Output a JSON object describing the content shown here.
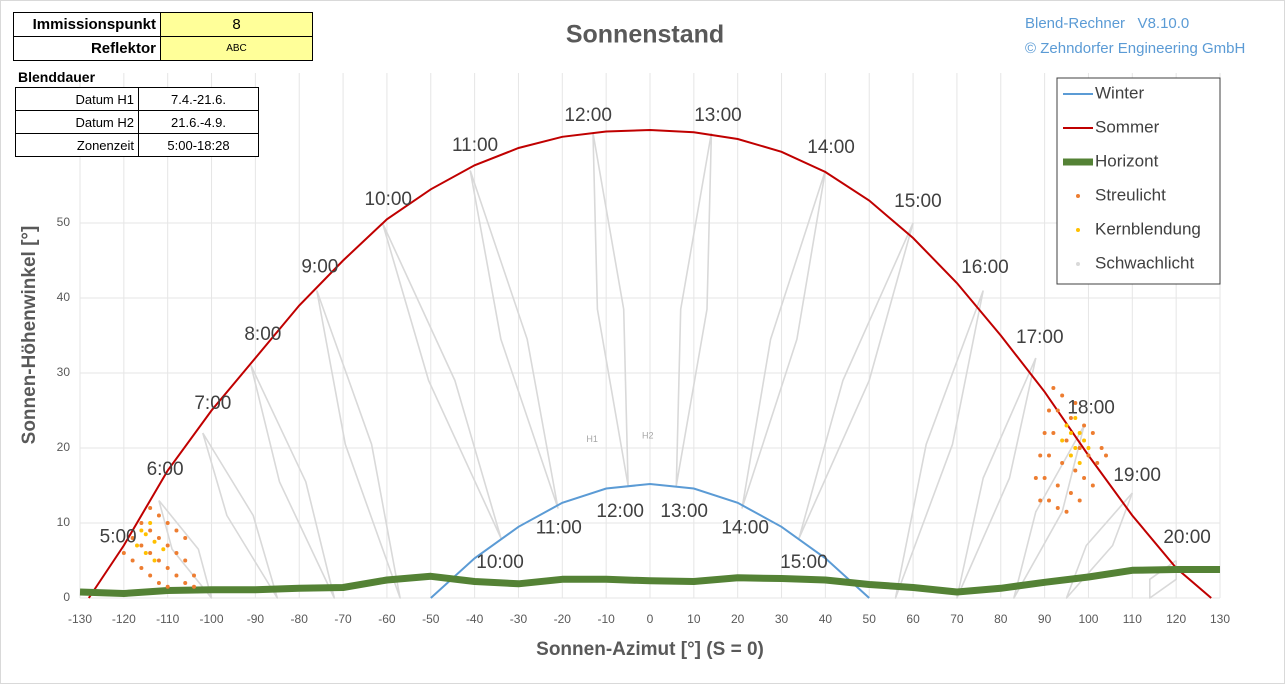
{
  "header": {
    "rows": [
      [
        "Immissionspunkt",
        "8"
      ],
      [
        "Reflektor",
        "ABC"
      ]
    ]
  },
  "blenddauer": {
    "title": "Blenddauer",
    "rows": [
      [
        "Datum H1",
        "7.4.-21.6."
      ],
      [
        "Datum H2",
        "21.6.-4.9."
      ],
      [
        "Zonenzeit",
        "5:00-18:28"
      ]
    ]
  },
  "brand": [
    "Blend-Rechner   V8.10.0",
    "© Zehndorfer Engineering GmbH"
  ],
  "chart_data": {
    "type": "line",
    "title": "Sonnenstand",
    "xlabel": "Sonnen-Azimut [°] (S = 0)",
    "ylabel": "Sonnen-Höhenwinkel [°]",
    "xlim": [
      -130,
      130
    ],
    "ylim": [
      0,
      70
    ],
    "xticks": [
      -130,
      -120,
      -110,
      -100,
      -90,
      -80,
      -70,
      -60,
      -50,
      -40,
      -30,
      -20,
      -10,
      0,
      10,
      20,
      30,
      40,
      50,
      60,
      70,
      80,
      90,
      100,
      110,
      120,
      130
    ],
    "yticks": [
      0,
      10,
      20,
      30,
      40,
      50
    ],
    "grid": true,
    "legend": "upper right",
    "series": [
      {
        "name": "Winter",
        "color": "#5b9bd5",
        "style": "line",
        "x": [
          -50,
          -40,
          -30,
          -20,
          -10,
          0,
          10,
          20,
          30,
          40,
          50
        ],
        "y": [
          0,
          5.3,
          9.5,
          12.7,
          14.6,
          15.2,
          14.6,
          12.7,
          9.5,
          5.3,
          0
        ]
      },
      {
        "name": "Sommer",
        "color": "#c00000",
        "style": "line",
        "x": [
          -128,
          -120,
          -110,
          -100,
          -90,
          -80,
          -70,
          -60,
          -50,
          -40,
          -30,
          -20,
          -10,
          0,
          10,
          20,
          30,
          40,
          50,
          60,
          70,
          80,
          90,
          100,
          110,
          120,
          128
        ],
        "y": [
          0,
          7,
          17,
          25,
          32,
          39,
          45,
          50.5,
          54.5,
          57.7,
          60,
          61.5,
          62.2,
          62.4,
          62.1,
          61.2,
          59.5,
          56.8,
          53,
          48,
          42,
          35,
          27.5,
          19,
          11,
          4,
          0
        ]
      },
      {
        "name": "Horizont",
        "color": "#548235",
        "style": "thick",
        "x": [
          -130,
          -120,
          -110,
          -100,
          -90,
          -80,
          -70,
          -60,
          -50,
          -40,
          -30,
          -20,
          -10,
          0,
          10,
          20,
          30,
          40,
          50,
          60,
          70,
          80,
          90,
          100,
          110,
          120,
          130
        ],
        "y": [
          0.8,
          0.6,
          1,
          1.1,
          1.1,
          1.3,
          1.4,
          2.4,
          2.9,
          2.2,
          1.9,
          2.5,
          2.5,
          2.3,
          2.2,
          2.7,
          2.6,
          2.4,
          1.8,
          1.4,
          0.8,
          1.3,
          2.1,
          2.8,
          3.7,
          3.8,
          3.8
        ]
      },
      {
        "name": "Streulicht",
        "color": "#ed7d31",
        "style": "dots",
        "x": [
          -120,
          -118,
          -116,
          -114,
          -118,
          -116,
          -114,
          -112,
          -116,
          -114,
          -112,
          -110,
          -114,
          -112,
          -110,
          -108,
          -112,
          -110,
          -108,
          -106,
          -110,
          -108,
          -106,
          -104,
          -106,
          -104,
          89,
          88,
          89,
          90,
          91,
          92,
          91,
          90,
          91,
          92,
          93,
          94,
          93,
          93,
          94,
          95,
          96,
          97,
          95,
          96,
          97,
          98,
          99,
          98,
          99,
          100,
          101,
          101,
          102,
          103,
          104
        ],
        "y": [
          6,
          8,
          10,
          12,
          5,
          7,
          9,
          11,
          4,
          6,
          8,
          10,
          3,
          5,
          7,
          9,
          2,
          4,
          6,
          8,
          1.5,
          3,
          5,
          3,
          2,
          1.5,
          13,
          16,
          19,
          22,
          25,
          28,
          13,
          16,
          19,
          22,
          25,
          27,
          12,
          15,
          18,
          21,
          24,
          26,
          11.5,
          14,
          17,
          20,
          23,
          13,
          16,
          19,
          22,
          15,
          18,
          20,
          19
        ]
      },
      {
        "name": "Kernblendung",
        "color": "#ffc000",
        "style": "dots",
        "x": [
          -117,
          -115,
          -115,
          -113,
          -114,
          -116,
          -113,
          -111,
          94,
          95,
          96,
          97,
          98,
          99,
          97,
          100,
          96,
          98
        ],
        "y": [
          7,
          8.5,
          6,
          7.5,
          10,
          9,
          5,
          6.5,
          21,
          23,
          22,
          24,
          22,
          21,
          20,
          20,
          19,
          18
        ]
      },
      {
        "name": "Schwachlicht",
        "color": "#d9d9d9",
        "style": "loops",
        "segments": [
          {
            "x": [
              -112,
              -103,
              -100,
              -109,
              -112
            ],
            "y": [
              13,
              6.5,
              0,
              6.5,
              13
            ]
          },
          {
            "x": [
              -102,
              -90.5,
              -85,
              -96.5,
              -102
            ],
            "y": [
              22,
              11,
              0,
              11,
              22
            ]
          },
          {
            "x": [
              -91,
              -78.5,
              -72,
              -84.5,
              -91
            ],
            "y": [
              31,
              15.5,
              0,
              15.5,
              31
            ]
          },
          {
            "x": [
              -76,
              -63.5,
              -57,
              -69.5,
              -76
            ],
            "y": [
              41,
              20.5,
              0,
              20.5,
              41
            ]
          },
          {
            "x": [
              -61,
              -44.5,
              -34,
              -50.5,
              -61
            ],
            "y": [
              50,
              29,
              8,
              29,
              50
            ]
          },
          {
            "x": [
              -41,
              -28,
              -21,
              -34,
              -41
            ],
            "y": [
              57,
              34.5,
              12,
              34.5,
              57
            ]
          },
          {
            "x": [
              -13,
              -6,
              -5,
              -12,
              -13
            ],
            "y": [
              62,
              38.5,
              15,
              38.5,
              62
            ]
          },
          {
            "x": [
              14,
              13,
              6,
              7,
              14
            ],
            "y": [
              62,
              38.5,
              15,
              38.5,
              62
            ]
          },
          {
            "x": [
              40,
              33.5,
              21,
              27.5,
              40
            ],
            "y": [
              57,
              34.5,
              12,
              34.5,
              57
            ]
          },
          {
            "x": [
              60,
              50,
              34,
              44,
              60
            ],
            "y": [
              50,
              29,
              8,
              29,
              50
            ]
          },
          {
            "x": [
              76,
              69,
              56,
              63,
              76
            ],
            "y": [
              41,
              20.5,
              0,
              20.5,
              41
            ]
          },
          {
            "x": [
              88,
              82,
              70,
              76,
              88
            ],
            "y": [
              32,
              16,
              0,
              16,
              32
            ]
          },
          {
            "x": [
              99,
              94,
              83,
              88,
              99
            ],
            "y": [
              23,
              11.5,
              0,
              11.5,
              23
            ]
          },
          {
            "x": [
              110,
              105.5,
              95,
              99.5,
              110
            ],
            "y": [
              14,
              7,
              0,
              7,
              14
            ]
          },
          {
            "x": [
              120,
              120,
              114,
              114,
              120
            ],
            "y": [
              5,
              2.5,
              0,
              2.5,
              5
            ]
          }
        ]
      }
    ],
    "annotations": [
      {
        "text": "5:00",
        "x": -121.3,
        "y": 8.1
      },
      {
        "text": "6:00",
        "x": -110.6,
        "y": 17.1
      },
      {
        "text": "7:00",
        "x": -99.7,
        "y": 25.9
      },
      {
        "text": "8:00",
        "x": -88.3,
        "y": 35.1
      },
      {
        "text": "9:00",
        "x": -75.3,
        "y": 44.1
      },
      {
        "text": "10:00",
        "x": -59.7,
        "y": 53.1
      },
      {
        "text": "11:00",
        "x": -39.9,
        "y": 60.3
      },
      {
        "text": "12:00",
        "x": -14.1,
        "y": 64.3
      },
      {
        "text": "13:00",
        "x": 15.5,
        "y": 64.3
      },
      {
        "text": "14:00",
        "x": 41.3,
        "y": 60
      },
      {
        "text": "15:00",
        "x": 61.1,
        "y": 52.8
      },
      {
        "text": "16:00",
        "x": 76.4,
        "y": 44
      },
      {
        "text": "17:00",
        "x": 88.9,
        "y": 34.7
      },
      {
        "text": "18:00",
        "x": 100.6,
        "y": 25.3
      },
      {
        "text": "19:00",
        "x": 111.1,
        "y": 16.3
      },
      {
        "text": "20:00",
        "x": 122.5,
        "y": 8
      },
      {
        "text": "10:00",
        "x": -34.2,
        "y": 4.7
      },
      {
        "text": "11:00",
        "x": -20.8,
        "y": 9.3
      },
      {
        "text": "12:00",
        "x": -6.8,
        "y": 11.5
      },
      {
        "text": "13:00",
        "x": 7.8,
        "y": 11.5
      },
      {
        "text": "14:00",
        "x": 21.7,
        "y": 9.3
      },
      {
        "text": "15:00",
        "x": 35.1,
        "y": 4.7
      }
    ],
    "loop_labels": [
      {
        "text": "H1",
        "x": -13.2,
        "y": 21.1
      },
      {
        "text": "H2",
        "x": -0.5,
        "y": 21.6
      }
    ]
  }
}
